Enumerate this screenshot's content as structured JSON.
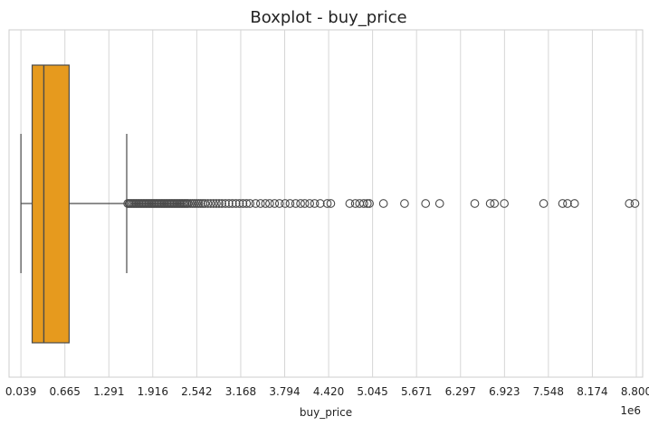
{
  "chart_data": {
    "type": "boxplot",
    "title": "Boxplot - buy_price",
    "xlabel": "buy_price",
    "x_offset_label": "1e6",
    "orientation": "horizontal",
    "x_ticks": [
      0.039,
      0.665,
      1.291,
      1.916,
      2.542,
      3.168,
      3.794,
      4.42,
      5.045,
      5.671,
      6.297,
      6.923,
      7.548,
      8.174,
      8.8
    ],
    "x_tick_labels": [
      "0.039",
      "0.665",
      "1.291",
      "1.916",
      "2.542",
      "3.168",
      "3.794",
      "4.420",
      "5.045",
      "5.671",
      "6.297",
      "6.923",
      "7.548",
      "8.174",
      "8.800"
    ],
    "xlim": [
      -0.13,
      8.89
    ],
    "grid": true,
    "box_color": "#E69A1E",
    "line_color": "#4a4a4a",
    "boxes": [
      {
        "whisker_low": 0.039,
        "q1": 0.199,
        "median": 0.365,
        "q3": 0.725,
        "whisker_high": 1.545,
        "outliers": [
          1.56,
          1.58,
          1.6,
          1.62,
          1.64,
          1.66,
          1.68,
          1.7,
          1.72,
          1.74,
          1.76,
          1.78,
          1.8,
          1.82,
          1.84,
          1.86,
          1.88,
          1.9,
          1.92,
          1.94,
          1.96,
          1.98,
          2.0,
          2.02,
          2.04,
          2.06,
          2.08,
          2.1,
          2.12,
          2.14,
          2.16,
          2.18,
          2.2,
          2.22,
          2.24,
          2.26,
          2.28,
          2.3,
          2.32,
          2.34,
          2.36,
          2.38,
          2.4,
          2.42,
          2.45,
          2.48,
          2.51,
          2.54,
          2.57,
          2.6,
          2.63,
          2.66,
          2.7,
          2.74,
          2.78,
          2.82,
          2.86,
          2.9,
          2.95,
          3.0,
          3.05,
          3.1,
          3.15,
          3.2,
          3.25,
          3.3,
          3.38,
          3.45,
          3.52,
          3.58,
          3.65,
          3.72,
          3.8,
          3.87,
          3.95,
          4.02,
          4.08,
          4.15,
          4.22,
          4.3,
          4.4,
          4.45,
          4.72,
          4.8,
          4.86,
          4.92,
          4.97,
          5.0,
          5.2,
          5.5,
          5.8,
          6.0,
          6.5,
          6.72,
          6.78,
          6.92,
          7.48,
          7.75,
          7.82,
          7.92,
          8.7,
          8.78
        ]
      }
    ]
  }
}
